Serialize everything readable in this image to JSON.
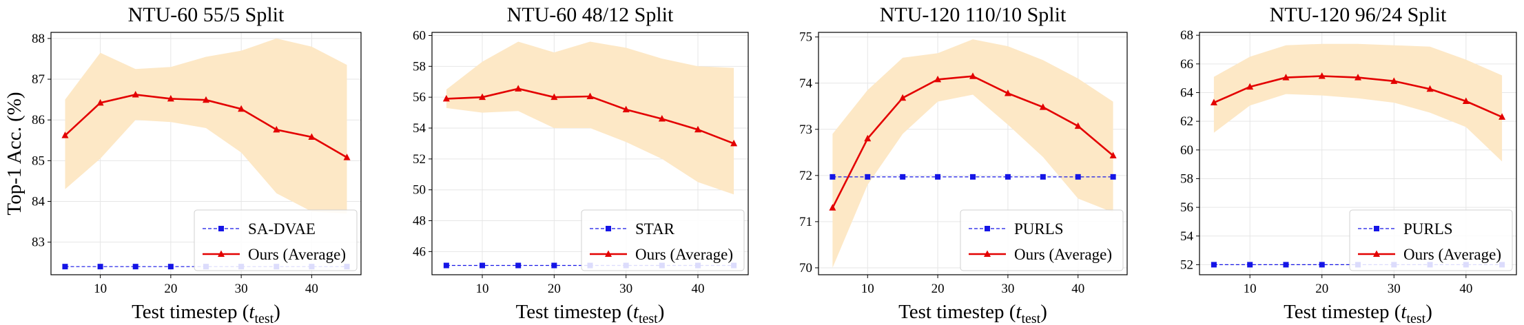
{
  "colors": {
    "baseline": "#1515e6",
    "ours": "#e30000",
    "band": "#fde8c6",
    "grid": "#e6e6e6"
  },
  "chart_data": [
    {
      "type": "line",
      "title": "NTU-60 55/5 Split",
      "xlabel": "Test timestep (",
      "xlabel_sym": "t",
      "xlabel_sub": "test",
      "xlabel_close": ")",
      "ylabel": "Top-1 Acc. (%)",
      "x": [
        5,
        10,
        15,
        20,
        25,
        30,
        35,
        40,
        45
      ],
      "xlim": [
        3,
        47
      ],
      "xticks": [
        10,
        20,
        30,
        40
      ],
      "ylim": [
        82.2,
        88.15
      ],
      "yticks": [
        83,
        84,
        85,
        86,
        87,
        88
      ],
      "legend_loc": "lower-right",
      "series": [
        {
          "name": "SA-DVAE",
          "role": "baseline",
          "marker": "square",
          "dashed": true,
          "values": [
            82.4,
            82.4,
            82.4,
            82.4,
            82.4,
            82.4,
            82.4,
            82.4,
            82.4
          ]
        },
        {
          "name": "Ours (Average)",
          "role": "ours",
          "marker": "triangle",
          "dashed": false,
          "values": [
            85.62,
            86.42,
            86.62,
            86.52,
            86.49,
            86.27,
            85.76,
            85.58,
            85.08
          ],
          "band_low": [
            84.3,
            85.05,
            86.0,
            85.95,
            85.8,
            85.2,
            84.2,
            83.75,
            83.7
          ],
          "band_high": [
            86.5,
            87.65,
            87.25,
            87.3,
            87.55,
            87.7,
            88.0,
            87.8,
            87.35
          ]
        }
      ]
    },
    {
      "type": "line",
      "title": "NTU-60 48/12 Split",
      "xlabel": "Test timestep (",
      "xlabel_sym": "t",
      "xlabel_sub": "test",
      "xlabel_close": ")",
      "ylabel": "",
      "x": [
        5,
        10,
        15,
        20,
        25,
        30,
        35,
        40,
        45
      ],
      "xlim": [
        3,
        47
      ],
      "xticks": [
        10,
        20,
        30,
        40
      ],
      "ylim": [
        44.5,
        60.2
      ],
      "yticks": [
        46,
        48,
        50,
        52,
        54,
        56,
        58,
        60
      ],
      "legend_loc": "lower-right",
      "series": [
        {
          "name": "STAR",
          "role": "baseline",
          "marker": "square",
          "dashed": true,
          "values": [
            45.1,
            45.1,
            45.1,
            45.1,
            45.1,
            45.1,
            45.1,
            45.1,
            45.1
          ]
        },
        {
          "name": "Ours (Average)",
          "role": "ours",
          "marker": "triangle",
          "dashed": false,
          "values": [
            55.9,
            56.0,
            56.55,
            56.0,
            56.05,
            55.2,
            54.6,
            53.9,
            53.0
          ],
          "band_low": [
            55.3,
            55.0,
            55.1,
            54.0,
            54.0,
            53.1,
            52.0,
            50.5,
            49.7
          ],
          "band_high": [
            56.5,
            58.3,
            59.6,
            58.9,
            59.6,
            59.2,
            58.5,
            58.0,
            57.9
          ]
        }
      ]
    },
    {
      "type": "line",
      "title": "NTU-120 110/10 Split",
      "xlabel": "Test timestep (",
      "xlabel_sym": "t",
      "xlabel_sub": "test",
      "xlabel_close": ")",
      "ylabel": "",
      "x": [
        5,
        10,
        15,
        20,
        25,
        30,
        35,
        40,
        45
      ],
      "xlim": [
        3,
        47
      ],
      "xticks": [
        10,
        20,
        30,
        40
      ],
      "ylim": [
        69.85,
        75.1
      ],
      "yticks": [
        70,
        71,
        72,
        73,
        74,
        75
      ],
      "legend_loc": "lower-right",
      "series": [
        {
          "name": "PURLS",
          "role": "baseline",
          "marker": "square",
          "dashed": true,
          "values": [
            71.97,
            71.97,
            71.97,
            71.97,
            71.97,
            71.97,
            71.97,
            71.97,
            71.97
          ]
        },
        {
          "name": "Ours (Average)",
          "role": "ours",
          "marker": "triangle",
          "dashed": false,
          "values": [
            71.3,
            72.8,
            73.68,
            74.08,
            74.15,
            73.78,
            73.48,
            73.07,
            72.43
          ],
          "band_low": [
            70.0,
            71.8,
            72.9,
            73.6,
            73.75,
            73.1,
            72.4,
            71.5,
            71.2
          ],
          "band_high": [
            72.9,
            73.85,
            74.55,
            74.65,
            74.95,
            74.8,
            74.5,
            74.1,
            73.6
          ]
        }
      ]
    },
    {
      "type": "line",
      "title": "NTU-120 96/24 Split",
      "xlabel": "Test timestep (",
      "xlabel_sym": "t",
      "xlabel_sub": "test",
      "xlabel_close": ")",
      "ylabel": "",
      "x": [
        5,
        10,
        15,
        20,
        25,
        30,
        35,
        40,
        45
      ],
      "xlim": [
        3,
        47
      ],
      "xticks": [
        10,
        20,
        30,
        40
      ],
      "ylim": [
        51.3,
        68.2
      ],
      "yticks": [
        52,
        54,
        56,
        58,
        60,
        62,
        64,
        66,
        68
      ],
      "legend_loc": "lower-right",
      "series": [
        {
          "name": "PURLS",
          "role": "baseline",
          "marker": "square",
          "dashed": true,
          "values": [
            52.0,
            52.0,
            52.0,
            52.0,
            52.0,
            52.0,
            52.0,
            52.0,
            52.0
          ]
        },
        {
          "name": "Ours (Average)",
          "role": "ours",
          "marker": "triangle",
          "dashed": false,
          "values": [
            63.3,
            64.4,
            65.05,
            65.15,
            65.05,
            64.8,
            64.25,
            63.4,
            62.3
          ],
          "band_low": [
            61.2,
            63.1,
            63.9,
            63.8,
            63.6,
            63.3,
            62.6,
            61.6,
            59.2
          ],
          "band_high": [
            65.1,
            66.5,
            67.3,
            67.4,
            67.4,
            67.3,
            67.2,
            66.3,
            65.2
          ]
        }
      ]
    }
  ]
}
